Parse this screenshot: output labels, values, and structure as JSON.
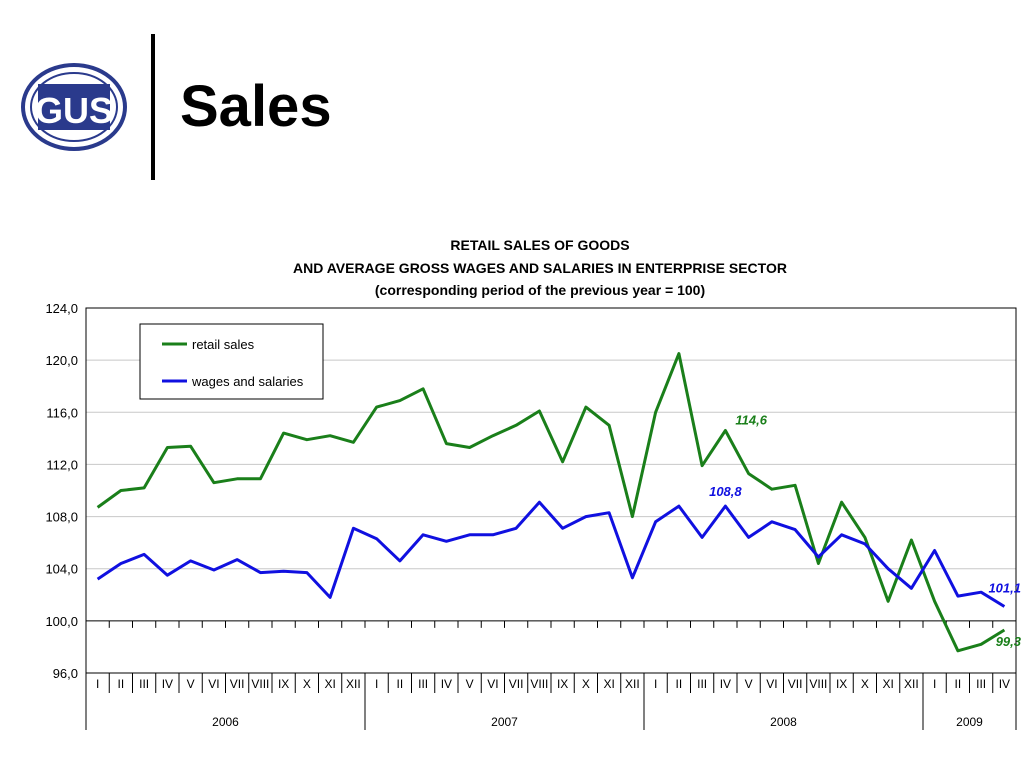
{
  "header": {
    "logo_text": "GUS",
    "title": "Sales"
  },
  "colors": {
    "retail": "#1a7f1a",
    "wages": "#1010e0",
    "logo_blue": "#2a3a8c"
  },
  "chart_data": {
    "type": "line",
    "title_lines": [
      "RETAIL SALES OF GOODS",
      "AND AVERAGE GROSS WAGES AND SALARIES IN ENTERPRISE SECTOR",
      "(corresponding period of the previous year = 100)"
    ],
    "x": [
      "I",
      "II",
      "III",
      "IV",
      "V",
      "VI",
      "VII",
      "VIII",
      "IX",
      "X",
      "XI",
      "XII",
      "I",
      "II",
      "III",
      "IV",
      "V",
      "VI",
      "VII",
      "VIII",
      "IX",
      "X",
      "XI",
      "XII",
      "I",
      "II",
      "III",
      "IV",
      "V",
      "VI",
      "VII",
      "VIII",
      "IX",
      "X",
      "XI",
      "XII",
      "I",
      "II",
      "III",
      "IV"
    ],
    "years": [
      {
        "label": "2006",
        "months": 12
      },
      {
        "label": "2007",
        "months": 12
      },
      {
        "label": "2008",
        "months": 12
      },
      {
        "label": "2009",
        "months": 4
      }
    ],
    "ylim": [
      96,
      124
    ],
    "yticks": [
      "96,0",
      "100,0",
      "104,0",
      "108,0",
      "112,0",
      "116,0",
      "120,0",
      "124,0"
    ],
    "grid": true,
    "legend_position": "top-left",
    "series": [
      {
        "name": "retail sales",
        "color_key": "retail",
        "values": [
          108.7,
          110.0,
          110.2,
          113.3,
          113.4,
          110.6,
          110.9,
          110.9,
          114.4,
          113.9,
          114.2,
          113.7,
          116.4,
          116.9,
          117.8,
          113.6,
          113.3,
          114.2,
          115.0,
          116.1,
          112.2,
          116.4,
          115.0,
          108.0,
          116.0,
          120.5,
          111.9,
          114.6,
          111.3,
          110.1,
          110.4,
          104.4,
          109.1,
          106.4,
          101.5,
          106.2,
          101.5,
          97.7,
          98.2,
          99.3
        ]
      },
      {
        "name": "wages and salaries",
        "color_key": "wages",
        "values": [
          103.2,
          104.4,
          105.1,
          103.5,
          104.6,
          103.9,
          104.7,
          103.7,
          103.8,
          103.7,
          101.8,
          107.1,
          106.3,
          104.6,
          106.6,
          106.1,
          106.6,
          106.6,
          107.1,
          109.1,
          107.1,
          108.0,
          108.3,
          103.3,
          107.6,
          108.8,
          106.4,
          108.8,
          106.4,
          107.6,
          107.0,
          104.9,
          106.6,
          105.9,
          104.0,
          102.5,
          105.4,
          101.9,
          102.2,
          101.1
        ]
      }
    ],
    "annotations": [
      {
        "text": "114,6",
        "series_index": 0,
        "point_index": 27
      },
      {
        "text": "108,8",
        "series_index": 1,
        "point_index": 27
      },
      {
        "text": "101,1",
        "series_index": 1,
        "point_index": 39
      },
      {
        "text": "99,3",
        "series_index": 0,
        "point_index": 39
      }
    ]
  }
}
